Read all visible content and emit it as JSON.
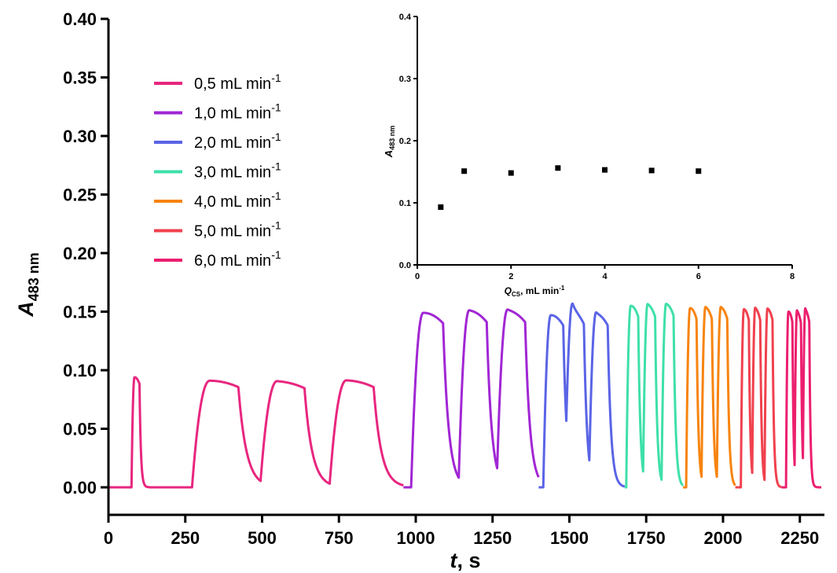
{
  "chart_data": [
    {
      "type": "line",
      "title": "",
      "xlabel": {
        "main": "t",
        "unit": ", s"
      },
      "ylabel": {
        "main": "A",
        "sub": "483 nm"
      },
      "xlim": [
        0,
        2330
      ],
      "ylim": [
        0,
        0.4
      ],
      "xticks": [
        0,
        250,
        500,
        750,
        1000,
        1250,
        1500,
        1750,
        2000,
        2250
      ],
      "xtick_labels": [
        "0",
        "250",
        "500",
        "750",
        "1000",
        "1250",
        "1500",
        "1750",
        "2000",
        "2250"
      ],
      "yticks": [
        0,
        0.05,
        0.1,
        0.15,
        0.2,
        0.25,
        0.3,
        0.35,
        0.4
      ],
      "ytick_labels": [
        "0.00",
        "0.05",
        "0.10",
        "0.15",
        "0.20",
        "0.25",
        "0.30",
        "0.35",
        "0.40"
      ],
      "grid": false,
      "legend_position": "top-left",
      "series": [
        {
          "name": "0,5",
          "unit": "mL min",
          "sup": "-1",
          "color": "#e8267f",
          "t_start": 0,
          "t_end": 960,
          "baseline": 0.0,
          "peaks": [
            {
              "start": 75,
              "apex": 85,
              "height": 0.094
            },
            {
              "start": 272,
              "apex": 330,
              "height": 0.091
            },
            {
              "start": 495,
              "apex": 550,
              "height": 0.09
            },
            {
              "start": 720,
              "apex": 775,
              "height": 0.091
            }
          ]
        },
        {
          "name": "1,0",
          "unit": "mL min",
          "sup": "-1",
          "color": "#a126d4",
          "t_start": 960,
          "t_end": 1400,
          "baseline": 0.0,
          "peaks": [
            {
              "start": 985,
              "apex": 1025,
              "height": 0.149
            },
            {
              "start": 1140,
              "apex": 1175,
              "height": 0.15
            },
            {
              "start": 1265,
              "apex": 1300,
              "height": 0.15
            }
          ]
        },
        {
          "name": "2,0",
          "unit": "mL min",
          "sup": "-1",
          "color": "#5a64e6",
          "t_start": 1400,
          "t_end": 1680,
          "baseline": 0.0,
          "peaks": [
            {
              "start": 1415,
              "apex": 1440,
              "height": 0.147
            },
            {
              "start": 1490,
              "apex": 1512,
              "height": 0.148
            },
            {
              "start": 1565,
              "apex": 1588,
              "height": 0.147
            }
          ]
        },
        {
          "name": "3,0",
          "unit": "mL min",
          "sup": "-1",
          "color": "#3ee0a8",
          "t_start": 1680,
          "t_end": 1870,
          "baseline": 0.0,
          "peaks": [
            {
              "start": 1685,
              "apex": 1700,
              "height": 0.155
            },
            {
              "start": 1740,
              "apex": 1755,
              "height": 0.155
            },
            {
              "start": 1800,
              "apex": 1815,
              "height": 0.156
            }
          ]
        },
        {
          "name": "4,0",
          "unit": "mL min",
          "sup": "-1",
          "color": "#f7840f",
          "t_start": 1870,
          "t_end": 2040,
          "baseline": 0.0,
          "peaks": [
            {
              "start": 1880,
              "apex": 1893,
              "height": 0.153
            },
            {
              "start": 1930,
              "apex": 1943,
              "height": 0.153
            },
            {
              "start": 1980,
              "apex": 1993,
              "height": 0.153
            }
          ]
        },
        {
          "name": "5,0",
          "unit": "mL min",
          "sup": "-1",
          "color": "#f0414e",
          "t_start": 2040,
          "t_end": 2190,
          "baseline": 0.0,
          "peaks": [
            {
              "start": 2058,
              "apex": 2068,
              "height": 0.152
            },
            {
              "start": 2095,
              "apex": 2105,
              "height": 0.152
            },
            {
              "start": 2135,
              "apex": 2145,
              "height": 0.152
            }
          ]
        },
        {
          "name": "6,0",
          "unit": "mL min",
          "sup": "-1",
          "color": "#ec1f6f",
          "t_start": 2190,
          "t_end": 2320,
          "baseline": 0.0,
          "peaks": [
            {
              "start": 2205,
              "apex": 2213,
              "height": 0.15
            },
            {
              "start": 2233,
              "apex": 2241,
              "height": 0.149
            },
            {
              "start": 2260,
              "apex": 2268,
              "height": 0.15
            }
          ]
        }
      ]
    },
    {
      "type": "scatter",
      "title": "",
      "xlabel": {
        "main": "Q",
        "sub": "CS",
        "unit": ", mL min",
        "sup": "-1"
      },
      "ylabel": {
        "main": "A",
        "sub": "483 nm"
      },
      "xlim": [
        0,
        8
      ],
      "ylim": [
        0,
        0.4
      ],
      "xticks": [
        0,
        2,
        4,
        6,
        8
      ],
      "xtick_labels": [
        "0",
        "2",
        "4",
        "6",
        "8"
      ],
      "yticks": [
        0,
        0.1,
        0.2,
        0.3,
        0.4
      ],
      "ytick_labels": [
        "0.0",
        "0.1",
        "0.2",
        "0.3",
        "0.4"
      ],
      "grid": false,
      "series": [
        {
          "color": "#000000",
          "x": [
            0.5,
            1.0,
            2.0,
            3.0,
            4.0,
            5.0,
            6.0
          ],
          "y": [
            0.093,
            0.151,
            0.148,
            0.156,
            0.153,
            0.152,
            0.151
          ]
        }
      ]
    }
  ]
}
